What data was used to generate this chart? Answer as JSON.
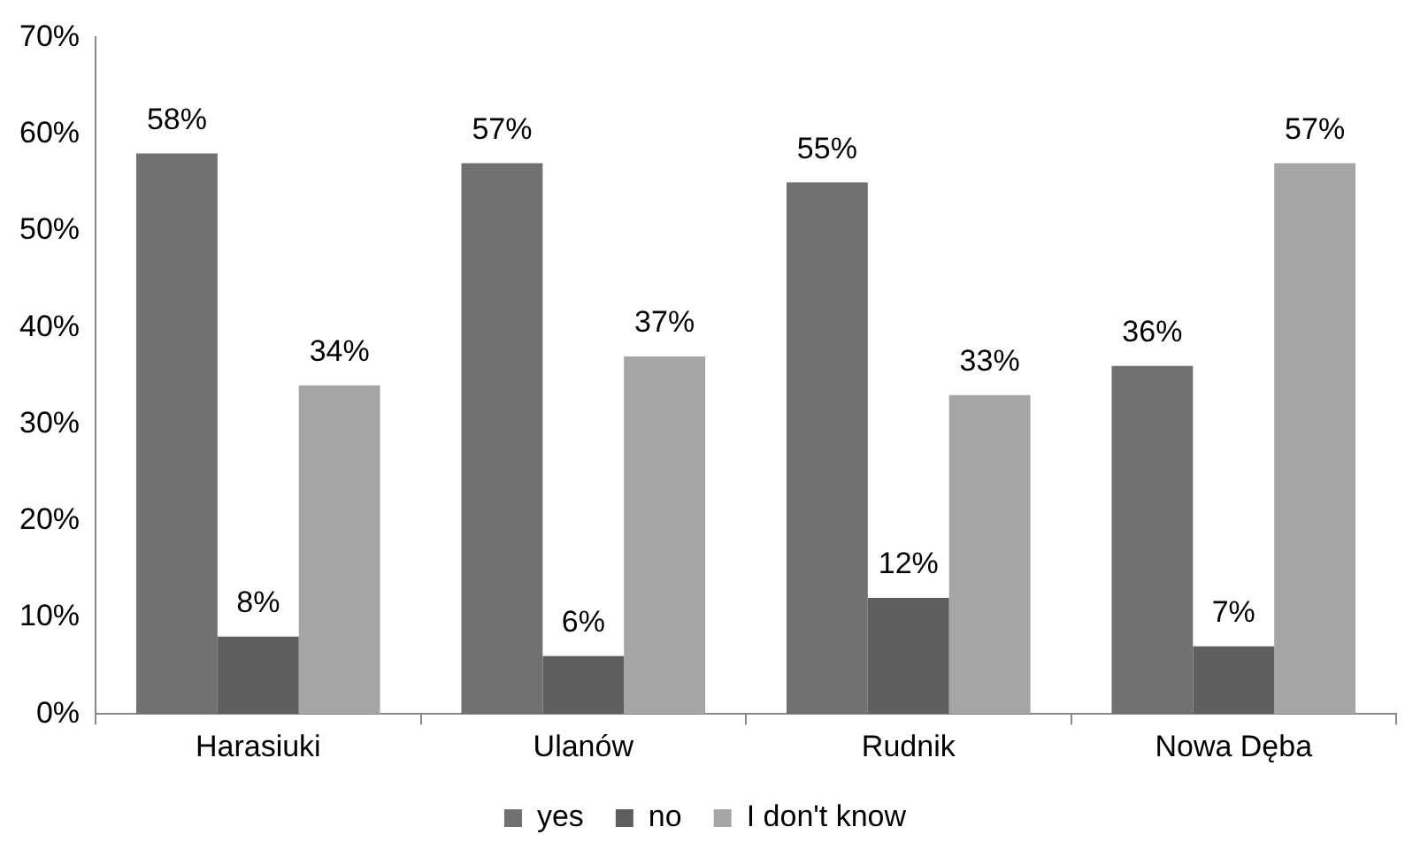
{
  "chart_data": {
    "type": "bar",
    "categories": [
      "Harasiuki",
      "Ulanów",
      "Rudnik",
      "Nowa Dęba"
    ],
    "series": [
      {
        "name": "yes",
        "color": "#717171",
        "values": [
          58,
          57,
          55,
          36
        ],
        "value_labels": [
          "58%",
          "57%",
          "55%",
          "36%"
        ]
      },
      {
        "name": "no",
        "color": "#5f5f5f",
        "values": [
          8,
          6,
          12,
          7
        ],
        "value_labels": [
          "8%",
          "6%",
          "12%",
          "7%"
        ]
      },
      {
        "name": "I don't know",
        "color": "#a5a5a5",
        "values": [
          34,
          37,
          33,
          57
        ],
        "value_labels": [
          "34%",
          "37%",
          "33%",
          "57%"
        ]
      }
    ],
    "ylim": [
      0,
      70
    ],
    "yticks": [
      {
        "value": 0,
        "label": "0%"
      },
      {
        "value": 10,
        "label": "10%"
      },
      {
        "value": 20,
        "label": "20%"
      },
      {
        "value": 30,
        "label": "30%"
      },
      {
        "value": 40,
        "label": "40%"
      },
      {
        "value": 50,
        "label": "50%"
      },
      {
        "value": 60,
        "label": "60%"
      },
      {
        "value": 70,
        "label": "70%"
      }
    ],
    "grid": false,
    "legend": "bottom"
  }
}
